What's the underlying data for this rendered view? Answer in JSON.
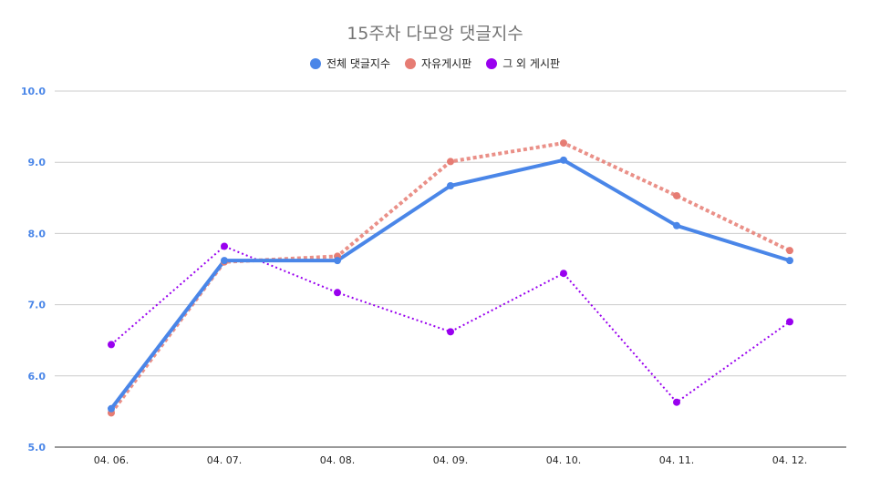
{
  "chart_data": {
    "type": "line",
    "title": "15주차 다모앙 댓글지수",
    "xlabel": "",
    "ylabel": "",
    "categories": [
      "04. 06.",
      "04. 07.",
      "04. 08.",
      "04. 09.",
      "04. 10.",
      "04. 11.",
      "04. 12."
    ],
    "ylim": [
      5.0,
      10.0
    ],
    "yticks": [
      "5.0",
      "6.0",
      "7.0",
      "8.0",
      "9.0",
      "10.0"
    ],
    "grid": true,
    "legend_position": "top-center",
    "series": [
      {
        "name": "전체 댓글지수",
        "values": [
          5.54,
          7.62,
          7.62,
          8.67,
          9.03,
          8.11,
          7.62
        ],
        "color": "#4a86e8",
        "style": "solid"
      },
      {
        "name": "자유게시판",
        "values": [
          5.48,
          7.6,
          7.68,
          9.01,
          9.27,
          8.53,
          7.76
        ],
        "color": "#e67c73",
        "style": "dotted-thick"
      },
      {
        "name": "그 외 게시판",
        "values": [
          6.44,
          7.82,
          7.17,
          6.62,
          7.44,
          5.63,
          6.76
        ],
        "color": "#9900ef",
        "style": "dotted-thin"
      }
    ]
  }
}
